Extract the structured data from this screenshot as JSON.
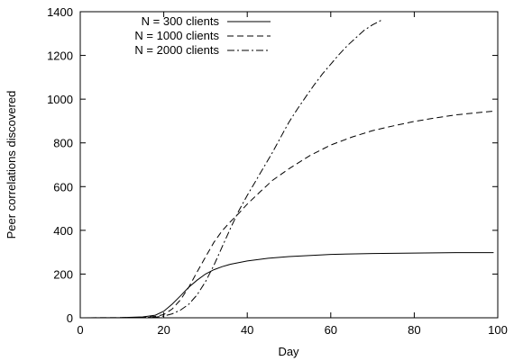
{
  "chart_data": {
    "type": "line",
    "title": "",
    "xlabel": "Day",
    "ylabel": "Peer correlations discovered",
    "xlim": [
      0,
      100
    ],
    "ylim": [
      0,
      1400
    ],
    "xticks": [
      0,
      20,
      40,
      60,
      80,
      100
    ],
    "yticks": [
      0,
      200,
      400,
      600,
      800,
      1000,
      1200,
      1400
    ],
    "grid": false,
    "legend_position": "top-left",
    "series": [
      {
        "name": "N = 300 clients",
        "dash": "solid",
        "x": [
          0,
          10,
          15,
          18,
          20,
          22,
          24,
          26,
          28,
          30,
          32,
          34,
          36,
          40,
          45,
          50,
          60,
          70,
          80,
          90,
          99
        ],
        "y": [
          0,
          1,
          4,
          12,
          30,
          62,
          100,
          140,
          172,
          200,
          220,
          234,
          245,
          260,
          272,
          280,
          290,
          294,
          296,
          298,
          298
        ]
      },
      {
        "name": "N = 1000 clients",
        "dash": "dashed",
        "x": [
          0,
          10,
          15,
          18,
          20,
          22,
          24,
          26,
          28,
          30,
          32,
          34,
          36,
          38,
          40,
          43,
          46,
          50,
          55,
          60,
          65,
          70,
          75,
          80,
          85,
          90,
          95,
          99
        ],
        "y": [
          0,
          1,
          2,
          6,
          15,
          40,
          82,
          140,
          210,
          278,
          345,
          398,
          440,
          478,
          520,
          575,
          628,
          682,
          742,
          790,
          826,
          856,
          878,
          898,
          914,
          928,
          938,
          945
        ]
      },
      {
        "name": "N = 2000 clients",
        "dash": "dashdot",
        "x": [
          0,
          10,
          15,
          18,
          20,
          22,
          24,
          26,
          28,
          30,
          32,
          34,
          36,
          38,
          40,
          42,
          44,
          46,
          48,
          50,
          52,
          54,
          56,
          58,
          60,
          62,
          64,
          66,
          68,
          70,
          72
        ],
        "y": [
          0,
          0,
          1,
          3,
          8,
          18,
          35,
          62,
          105,
          165,
          240,
          325,
          410,
          490,
          560,
          625,
          690,
          755,
          825,
          895,
          955,
          1010,
          1065,
          1115,
          1160,
          1205,
          1245,
          1280,
          1315,
          1340,
          1360
        ]
      }
    ]
  }
}
